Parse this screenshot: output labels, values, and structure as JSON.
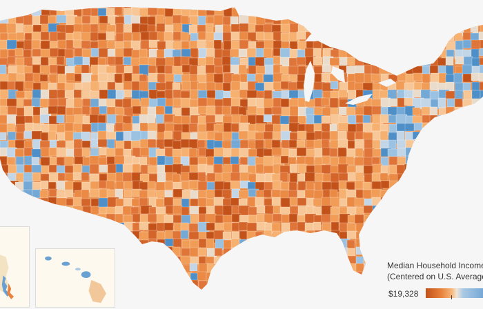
{
  "legend": {
    "title_line1": "Median Household Income",
    "title_line2": "(Centered on U.S. Average)",
    "min_label": "$19,328",
    "colors": {
      "low": "#c2521a",
      "mid_low": "#e8823c",
      "light_orange": "#f7b77c",
      "neutral": "#efe5d6",
      "light_blue": "#a9c9e5",
      "high": "#6aa1d2"
    }
  },
  "map": {
    "background": "#f6f6f6",
    "land_base": "#ea8a44",
    "county_palette": [
      "#c2521a",
      "#d4652a",
      "#e0753a",
      "#ea8a44",
      "#f19d57",
      "#f6b170",
      "#f8c797",
      "#e9dccd",
      "#c3d6e8",
      "#9cc2e2",
      "#74a9d6",
      "#4f8fc8"
    ]
  }
}
